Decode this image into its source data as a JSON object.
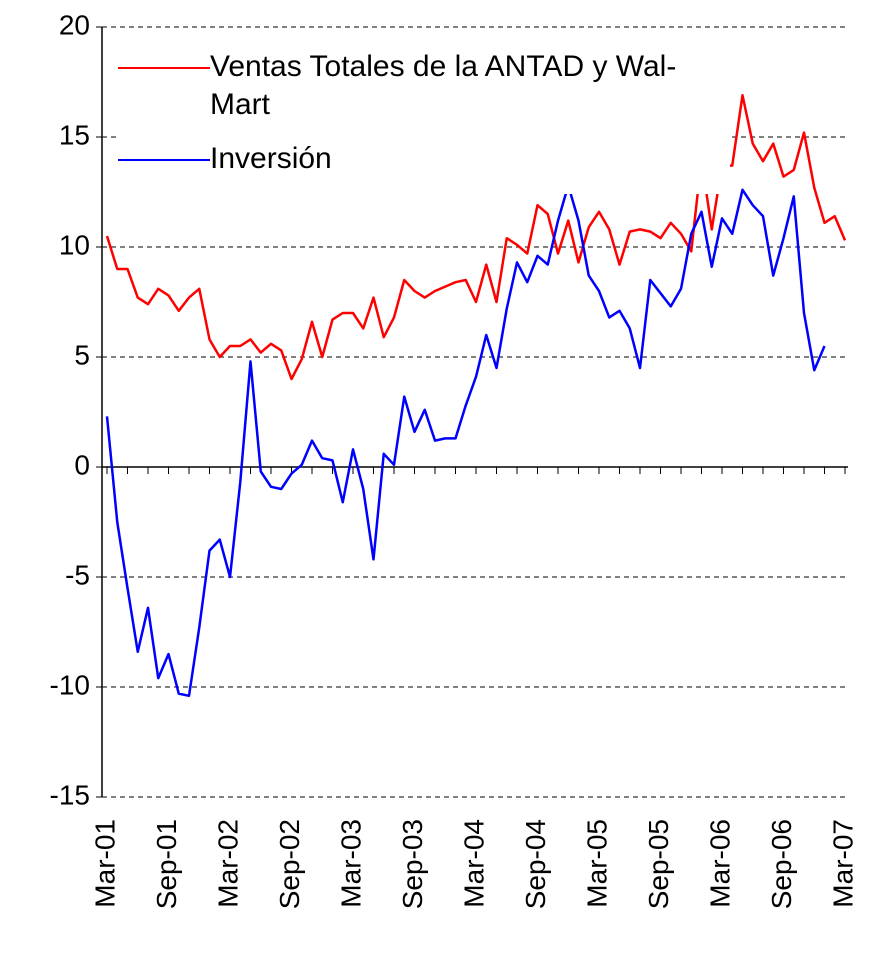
{
  "chart_data": {
    "type": "line",
    "categories": [
      "Mar-01",
      null,
      null,
      null,
      null,
      null,
      "Sep-01",
      null,
      null,
      null,
      null,
      null,
      "Mar-02",
      null,
      null,
      null,
      null,
      null,
      "Sep-02",
      null,
      null,
      null,
      null,
      null,
      "Mar-03",
      null,
      null,
      null,
      null,
      null,
      "Sep-03",
      null,
      null,
      null,
      null,
      null,
      "Mar-04",
      null,
      null,
      null,
      null,
      null,
      "Sep-04",
      null,
      null,
      null,
      null,
      null,
      "Mar-05",
      null,
      null,
      null,
      null,
      null,
      "Sep-05",
      null,
      null,
      null,
      null,
      null,
      "Mar-06",
      null,
      null,
      null,
      null,
      null,
      "Sep-06",
      null,
      null,
      null,
      null,
      null,
      "Mar-07"
    ],
    "series": [
      {
        "name": "Ventas Totales de la ANTAD y Wal-Mart",
        "color": "#ff0000",
        "values": [
          10.5,
          9.0,
          9.0,
          7.7,
          7.4,
          8.1,
          7.8,
          7.1,
          7.7,
          8.1,
          5.8,
          5.0,
          5.5,
          5.5,
          5.8,
          5.2,
          5.6,
          5.3,
          4.0,
          4.9,
          6.6,
          5.0,
          6.7,
          7.0,
          7.0,
          6.3,
          7.7,
          5.9,
          6.8,
          8.5,
          8.0,
          7.7,
          8.0,
          8.2,
          8.4,
          8.5,
          7.5,
          9.2,
          7.5,
          10.4,
          10.1,
          9.7,
          11.9,
          11.5,
          9.7,
          11.2,
          9.3,
          10.9,
          11.6,
          10.8,
          9.2,
          10.7,
          10.8,
          10.7,
          10.4,
          11.1,
          10.6,
          9.8,
          14.0,
          10.8,
          13.7,
          13.7,
          16.9,
          14.7,
          13.9,
          14.7,
          13.2,
          13.5,
          15.2,
          12.7,
          11.1,
          11.4,
          10.3
        ]
      },
      {
        "name": "Inversión",
        "color": "#0000ff",
        "values": [
          2.3,
          -2.5,
          -5.5,
          -8.4,
          -6.4,
          -9.6,
          -8.5,
          -10.3,
          -10.4,
          -7.3,
          -3.8,
          -3.3,
          -5.0,
          -0.7,
          4.8,
          -0.2,
          -0.9,
          -1.0,
          -0.3,
          0.1,
          1.2,
          0.4,
          0.3,
          -1.6,
          0.8,
          -1.0,
          -4.2,
          0.6,
          0.1,
          3.2,
          1.6,
          2.6,
          1.2,
          1.3,
          1.3,
          2.8,
          4.1,
          6.0,
          4.5,
          7.2,
          9.3,
          8.4,
          9.6,
          9.2,
          11.2,
          12.8,
          11.2,
          8.7,
          8.0,
          6.8,
          7.1,
          6.3,
          4.5,
          8.5,
          7.9,
          7.3,
          8.1,
          10.6,
          11.6,
          9.1,
          11.3,
          10.6,
          12.6,
          11.9,
          11.4,
          8.7,
          10.4,
          12.3,
          7.0,
          4.4,
          5.5,
          null,
          null
        ]
      }
    ],
    "ylim": [
      -15,
      20
    ],
    "yticks": [
      -15,
      -10,
      -5,
      0,
      5,
      10,
      15,
      20
    ],
    "grid": true,
    "legend": "top-left"
  }
}
